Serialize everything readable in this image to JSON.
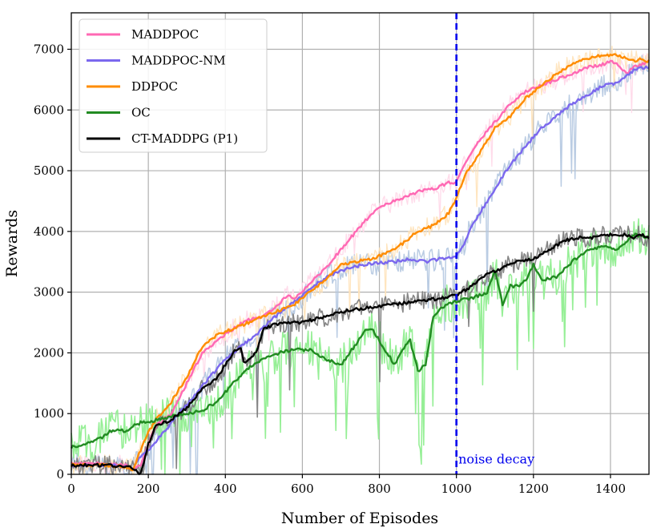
{
  "chart_data": {
    "type": "line",
    "title": "",
    "xlabel": "Number of Episodes",
    "ylabel": "Rewards",
    "xlim": [
      0,
      1500
    ],
    "ylim": [
      0,
      7600
    ],
    "xticks": [
      0,
      200,
      400,
      600,
      800,
      1000,
      1200,
      1400
    ],
    "yticks": [
      0,
      1000,
      2000,
      3000,
      4000,
      5000,
      6000,
      7000
    ],
    "grid": true,
    "legend_position": "top-left",
    "series": [
      {
        "name": "MADDPOC",
        "color": "#ff69b4",
        "raw_color": "#ffd7e8",
        "x": [
          0,
          100,
          140,
          160,
          180,
          200,
          220,
          260,
          300,
          340,
          380,
          420,
          460,
          500,
          540,
          560,
          580,
          620,
          660,
          700,
          740,
          780,
          820,
          860,
          900,
          940,
          980,
          1000,
          1020,
          1060,
          1100,
          1140,
          1180,
          1220,
          1260,
          1300,
          1340,
          1380,
          1400,
          1420,
          1440,
          1460,
          1480,
          1500
        ],
        "values": [
          180,
          170,
          150,
          80,
          150,
          500,
          800,
          1000,
          1500,
          2000,
          2200,
          2400,
          2550,
          2600,
          2800,
          2950,
          2900,
          3150,
          3400,
          3700,
          4000,
          4300,
          4450,
          4550,
          4650,
          4700,
          4800,
          4800,
          5100,
          5500,
          5800,
          6100,
          6300,
          6400,
          6500,
          6600,
          6700,
          6750,
          6800,
          6750,
          6600,
          6700,
          6750,
          6800
        ]
      },
      {
        "name": "MADDPOC-NM",
        "color": "#7b68ee",
        "raw_color": "#b3c6e0",
        "x": [
          0,
          100,
          140,
          160,
          180,
          200,
          240,
          280,
          320,
          360,
          400,
          440,
          480,
          520,
          560,
          600,
          640,
          680,
          720,
          760,
          800,
          840,
          880,
          920,
          960,
          1000,
          1020,
          1040,
          1060,
          1100,
          1140,
          1180,
          1220,
          1260,
          1300,
          1340,
          1380,
          1420,
          1440,
          1460,
          1480,
          1500
        ],
        "values": [
          150,
          150,
          130,
          80,
          300,
          400,
          700,
          1000,
          1300,
          1600,
          1900,
          2100,
          2300,
          2550,
          2750,
          2950,
          3150,
          3300,
          3400,
          3450,
          3480,
          3500,
          3550,
          3500,
          3550,
          3600,
          3800,
          4100,
          4300,
          4700,
          5100,
          5400,
          5700,
          5900,
          6100,
          6250,
          6400,
          6450,
          6550,
          6650,
          6700,
          6700
        ]
      },
      {
        "name": "DDPOC",
        "color": "#ff8c00",
        "raw_color": "#ffe2b8",
        "x": [
          0,
          100,
          140,
          160,
          180,
          200,
          220,
          260,
          300,
          340,
          380,
          420,
          460,
          500,
          540,
          580,
          620,
          660,
          700,
          740,
          780,
          820,
          860,
          900,
          940,
          980,
          1000,
          1020,
          1060,
          1100,
          1140,
          1180,
          1220,
          1260,
          1300,
          1340,
          1380,
          1420,
          1460,
          1480,
          1500
        ],
        "values": [
          150,
          150,
          120,
          80,
          400,
          700,
          900,
          1200,
          1600,
          2100,
          2300,
          2400,
          2500,
          2600,
          2700,
          2800,
          3000,
          3200,
          3450,
          3500,
          3550,
          3650,
          3800,
          4000,
          4100,
          4300,
          4550,
          4900,
          5300,
          5700,
          5900,
          6200,
          6400,
          6600,
          6750,
          6850,
          6900,
          6900,
          6800,
          6850,
          6800
        ]
      },
      {
        "name": "OC",
        "color": "#228b22",
        "raw_color": "#90ee90",
        "x": [
          0,
          40,
          80,
          100,
          120,
          140,
          160,
          180,
          200,
          220,
          260,
          300,
          340,
          380,
          420,
          460,
          500,
          540,
          580,
          620,
          660,
          680,
          700,
          740,
          760,
          780,
          800,
          840,
          860,
          880,
          900,
          920,
          940,
          960,
          1000,
          1040,
          1080,
          1100,
          1120,
          1140,
          1160,
          1180,
          1200,
          1220,
          1260,
          1300,
          1340,
          1380,
          1420,
          1460,
          1500
        ],
        "values": [
          450,
          500,
          600,
          700,
          750,
          700,
          800,
          850,
          850,
          900,
          950,
          1000,
          1050,
          1200,
          1500,
          1750,
          1900,
          2000,
          2050,
          2050,
          1900,
          1850,
          1800,
          2150,
          2350,
          2400,
          2200,
          1800,
          2050,
          2200,
          1700,
          1800,
          2600,
          2750,
          2850,
          2900,
          3000,
          3350,
          2800,
          3100,
          3100,
          3200,
          3450,
          3200,
          3250,
          3500,
          3700,
          3750,
          3700,
          3950,
          3900
        ]
      },
      {
        "name": "CT-MADDPG (P1)",
        "color": "#000000",
        "raw_color": "#7a7a7a",
        "x": [
          0,
          100,
          140,
          160,
          180,
          200,
          220,
          260,
          300,
          340,
          380,
          420,
          440,
          450,
          460,
          480,
          500,
          520,
          560,
          600,
          660,
          720,
          780,
          840,
          900,
          960,
          1000,
          1040,
          1080,
          1120,
          1160,
          1200,
          1240,
          1280,
          1320,
          1360,
          1400,
          1440,
          1460,
          1480,
          1500
        ],
        "values": [
          150,
          150,
          130,
          100,
          0,
          500,
          800,
          900,
          1100,
          1400,
          1600,
          2000,
          2100,
          1800,
          1900,
          2000,
          2400,
          2450,
          2500,
          2500,
          2600,
          2700,
          2750,
          2800,
          2850,
          2900,
          2950,
          3100,
          3300,
          3400,
          3500,
          3550,
          3700,
          3850,
          3900,
          3900,
          3950,
          3950,
          3900,
          3950,
          3900
        ]
      }
    ],
    "vline": {
      "x": 1000,
      "color": "#0000ee",
      "style": "dashed"
    },
    "annotations": [
      {
        "text": "noise decay",
        "x": 1005,
        "y": 180,
        "color": "#0000ee"
      }
    ]
  }
}
